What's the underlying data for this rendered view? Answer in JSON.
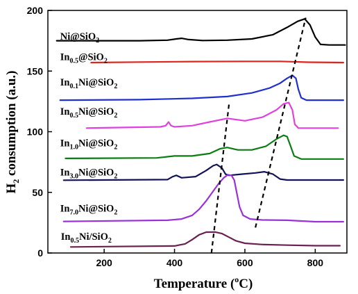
{
  "chart_data": {
    "type": "line",
    "title": "",
    "xlabel": {
      "text": "Temperature (",
      "sup": "o",
      "suffix": "C)"
    },
    "ylabel": {
      "main": "H",
      "sub": "2",
      "rest": " consumption (a.u.)"
    },
    "xlim": [
      40,
      890
    ],
    "ylim": [
      0,
      200
    ],
    "xticks": [
      200,
      400,
      600,
      800
    ],
    "yticks": [
      0,
      50,
      100,
      150,
      200
    ],
    "grid": false,
    "legend": "none",
    "series": [
      {
        "name": "Ni@SiO2",
        "label_parts": [
          [
            "Ni@SiO",
            ""
          ],
          [
            "2",
            "sub"
          ]
        ],
        "color": "#000000",
        "label_pos": [
          75,
          176
        ],
        "points": [
          [
            65,
            175
          ],
          [
            300,
            175
          ],
          [
            380,
            175.5
          ],
          [
            405,
            176.5
          ],
          [
            420,
            177
          ],
          [
            440,
            176
          ],
          [
            480,
            175.2
          ],
          [
            550,
            175.5
          ],
          [
            620,
            176.5
          ],
          [
            680,
            180
          ],
          [
            720,
            186
          ],
          [
            750,
            191
          ],
          [
            770,
            193
          ],
          [
            785,
            188
          ],
          [
            800,
            178
          ],
          [
            815,
            172
          ],
          [
            840,
            171.5
          ],
          [
            885,
            171.5
          ]
        ]
      },
      {
        "name": "In0.5@SiO2",
        "label_parts": [
          [
            "In",
            ""
          ],
          [
            "0.5",
            "sub"
          ],
          [
            "@SiO",
            ""
          ],
          [
            "2",
            "sub"
          ]
        ],
        "color": "#e0241b",
        "label_pos": [
          75,
          159
        ],
        "points": [
          [
            163,
            157
          ],
          [
            300,
            157.4
          ],
          [
            450,
            157.8
          ],
          [
            600,
            158
          ],
          [
            700,
            158
          ],
          [
            780,
            157.3
          ],
          [
            880,
            157
          ]
        ]
      },
      {
        "name": "In0.1Ni@SiO2",
        "label_parts": [
          [
            "In",
            ""
          ],
          [
            "0.1",
            "sub"
          ],
          [
            "Ni@SiO",
            ""
          ],
          [
            "2",
            "sub"
          ]
        ],
        "color": "#1f2fd0",
        "label_pos": [
          75,
          138
        ],
        "points": [
          [
            75,
            126
          ],
          [
            300,
            126.4
          ],
          [
            450,
            127.5
          ],
          [
            550,
            129
          ],
          [
            620,
            132
          ],
          [
            670,
            136
          ],
          [
            700,
            140
          ],
          [
            720,
            144
          ],
          [
            735,
            146.5
          ],
          [
            745,
            144
          ],
          [
            752,
            135
          ],
          [
            760,
            128
          ],
          [
            775,
            126
          ],
          [
            880,
            126
          ]
        ]
      },
      {
        "name": "In0.5Ni@SiO2",
        "label_parts": [
          [
            "In",
            ""
          ],
          [
            "0.5",
            "sub"
          ],
          [
            "Ni@SiO",
            ""
          ],
          [
            "2",
            "sub"
          ]
        ],
        "color": "#e040e0",
        "label_pos": [
          75,
          114
        ],
        "points": [
          [
            150,
            103
          ],
          [
            360,
            104
          ],
          [
            375,
            105
          ],
          [
            383,
            108
          ],
          [
            390,
            105
          ],
          [
            400,
            104
          ],
          [
            450,
            105
          ],
          [
            500,
            108
          ],
          [
            550,
            111
          ],
          [
            600,
            109
          ],
          [
            650,
            112
          ],
          [
            690,
            118
          ],
          [
            710,
            123
          ],
          [
            725,
            124
          ],
          [
            735,
            118
          ],
          [
            742,
            106
          ],
          [
            752,
            103
          ],
          [
            865,
            103
          ]
        ]
      },
      {
        "name": "In1.0Ni@SiO2",
        "label_parts": [
          [
            "In",
            ""
          ],
          [
            "1.0",
            "sub"
          ],
          [
            "Ni@SiO",
            ""
          ],
          [
            "2",
            "sub"
          ]
        ],
        "color": "#0a7d12",
        "label_pos": [
          75,
          88
        ],
        "points": [
          [
            90,
            78
          ],
          [
            350,
            78.4
          ],
          [
            400,
            80
          ],
          [
            450,
            80
          ],
          [
            500,
            82
          ],
          [
            530,
            86
          ],
          [
            550,
            87
          ],
          [
            580,
            85
          ],
          [
            620,
            85
          ],
          [
            660,
            88
          ],
          [
            690,
            94
          ],
          [
            710,
            97
          ],
          [
            720,
            96
          ],
          [
            730,
            88
          ],
          [
            740,
            80
          ],
          [
            760,
            77.5
          ],
          [
            880,
            77.5
          ]
        ]
      },
      {
        "name": "In3.0Ni@SiO2",
        "label_parts": [
          [
            "In",
            ""
          ],
          [
            "3.0",
            "sub"
          ],
          [
            "Ni@SiO",
            ""
          ],
          [
            "2",
            "sub"
          ]
        ],
        "color": "#121256",
        "label_pos": [
          75,
          64
        ],
        "points": [
          [
            85,
            60
          ],
          [
            380,
            60.5
          ],
          [
            395,
            63
          ],
          [
            405,
            64
          ],
          [
            420,
            62
          ],
          [
            460,
            63
          ],
          [
            490,
            68
          ],
          [
            510,
            72
          ],
          [
            520,
            73
          ],
          [
            535,
            70
          ],
          [
            545,
            65
          ],
          [
            555,
            64
          ],
          [
            590,
            65
          ],
          [
            630,
            66
          ],
          [
            655,
            67
          ],
          [
            680,
            65
          ],
          [
            700,
            61
          ],
          [
            720,
            60.2
          ],
          [
            880,
            60.2
          ]
        ]
      },
      {
        "name": "In7.0Ni@SiO2",
        "label_parts": [
          [
            "In",
            ""
          ],
          [
            "7.0",
            "sub"
          ],
          [
            "Ni@SiO",
            ""
          ],
          [
            "2",
            "sub"
          ]
        ],
        "color": "#9a30d8",
        "label_pos": [
          75,
          34
        ],
        "points": [
          [
            85,
            26
          ],
          [
            380,
            27
          ],
          [
            420,
            28
          ],
          [
            450,
            31
          ],
          [
            470,
            36
          ],
          [
            490,
            43
          ],
          [
            510,
            51
          ],
          [
            525,
            57
          ],
          [
            540,
            62
          ],
          [
            552,
            64.5
          ],
          [
            562,
            64
          ],
          [
            570,
            60
          ],
          [
            578,
            48
          ],
          [
            585,
            38
          ],
          [
            595,
            31
          ],
          [
            615,
            28
          ],
          [
            650,
            27.2
          ],
          [
            720,
            27
          ],
          [
            800,
            25.8
          ],
          [
            880,
            25.8
          ]
        ]
      },
      {
        "name": "In0.5Ni/SiO2",
        "label_parts": [
          [
            "In",
            ""
          ],
          [
            "0.5",
            "sub"
          ],
          [
            "Ni/SiO",
            ""
          ],
          [
            "2",
            "sub"
          ]
        ],
        "color": "#6a2050",
        "label_pos": [
          77,
          11
        ],
        "points": [
          [
            105,
            5
          ],
          [
            400,
            5.8
          ],
          [
            430,
            7.5
          ],
          [
            450,
            11
          ],
          [
            470,
            15
          ],
          [
            490,
            17.2
          ],
          [
            515,
            17.3
          ],
          [
            535,
            16
          ],
          [
            555,
            13
          ],
          [
            575,
            10
          ],
          [
            600,
            8
          ],
          [
            650,
            7
          ],
          [
            720,
            6.5
          ],
          [
            800,
            6
          ],
          [
            870,
            6
          ]
        ]
      }
    ],
    "annotations": [
      {
        "type": "dashed-line",
        "from": [
          505,
          0
        ],
        "to": [
          555,
          123
        ]
      },
      {
        "type": "dashed-line",
        "from": [
          630,
          21
        ],
        "to": [
          773,
          194
        ]
      }
    ]
  }
}
